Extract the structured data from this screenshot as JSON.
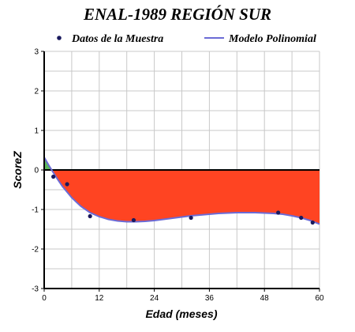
{
  "chart_data": {
    "type": "line",
    "title": "ENAL-1989 REGIÓN SUR",
    "xlabel": "Edad (meses)",
    "ylabel": "ScoreZ",
    "xlim": [
      0,
      60
    ],
    "ylim": [
      -3,
      3
    ],
    "x_ticks": [
      0,
      12,
      24,
      36,
      48,
      60
    ],
    "y_ticks": [
      -3,
      -2,
      -1,
      0,
      1,
      2,
      3
    ],
    "grid": true,
    "legend_position": "top",
    "series": [
      {
        "name": "Datos de la Muestra",
        "kind": "scatter",
        "color": "#1a1a5e",
        "x": [
          2,
          5,
          10,
          19.5,
          32,
          51,
          56,
          58.5
        ],
        "y": [
          -0.17,
          -0.36,
          -1.17,
          -1.27,
          -1.21,
          -1.08,
          -1.21,
          -1.33
        ]
      },
      {
        "name": "Modelo Polinomial",
        "kind": "line",
        "color": "#6b6bd6",
        "x": [
          0,
          1,
          2,
          3,
          4,
          6,
          8,
          10,
          12,
          14,
          16,
          18,
          20,
          22,
          24,
          26,
          28,
          30,
          32,
          34,
          36,
          38,
          40,
          42,
          44,
          46,
          48,
          50,
          52,
          54,
          56,
          58,
          60
        ],
        "y": [
          0.32,
          0.12,
          -0.07,
          -0.25,
          -0.42,
          -0.7,
          -0.92,
          -1.08,
          -1.18,
          -1.25,
          -1.29,
          -1.31,
          -1.31,
          -1.3,
          -1.28,
          -1.25,
          -1.22,
          -1.19,
          -1.16,
          -1.14,
          -1.12,
          -1.1,
          -1.09,
          -1.08,
          -1.08,
          -1.08,
          -1.09,
          -1.1,
          -1.12,
          -1.16,
          -1.21,
          -1.28,
          -1.37
        ]
      }
    ],
    "fill": {
      "below_zero_color": "#ff4422",
      "above_zero_color": "#5cb85c"
    },
    "colors": {
      "grid": "#c8c8c8",
      "zero_line": "#000000",
      "axis": "#000000"
    }
  }
}
